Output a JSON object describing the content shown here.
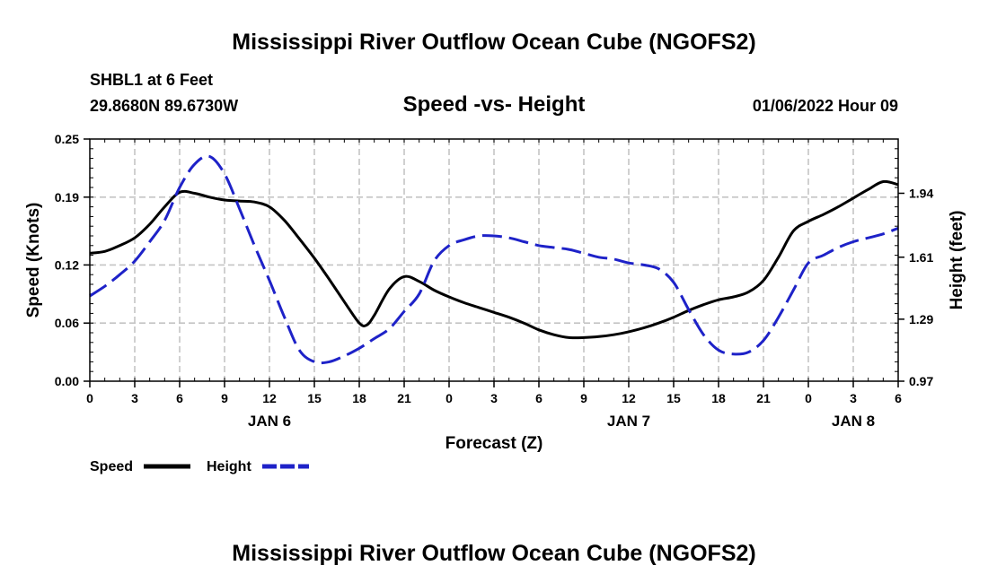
{
  "chart_data": {
    "type": "line",
    "title": "Mississippi River Outflow Ocean Cube (NGOFS2)",
    "footer_title": "Mississippi River Outflow Ocean Cube (NGOFS2)",
    "subtitle": "Speed -vs- Height",
    "station": "SHBL1 at 6 Feet",
    "location": "29.8680N  89.6730W",
    "timestamp": "01/06/2022 Hour 09",
    "xlabel": "Forecast (Z)",
    "ylabel_left": "Speed (Knots)",
    "ylabel_right": "Height (feet)",
    "x_range": [
      0,
      54
    ],
    "x_ticks": [
      0,
      3,
      6,
      9,
      12,
      15,
      18,
      21,
      24,
      27,
      30,
      33,
      36,
      39,
      42,
      45,
      48,
      51,
      54
    ],
    "x_tick_labels": [
      "0",
      "3",
      "6",
      "9",
      "12",
      "15",
      "18",
      "21",
      "0",
      "3",
      "6",
      "9",
      "12",
      "15",
      "18",
      "21",
      "0",
      "3",
      "6"
    ],
    "day_labels": [
      {
        "x": 12,
        "label": "JAN 6"
      },
      {
        "x": 36,
        "label": "JAN 7"
      },
      {
        "x": 51,
        "label": "JAN 8"
      }
    ],
    "ylim_left": [
      0,
      0.25
    ],
    "y_ticks_left": [
      0,
      0.06,
      0.12,
      0.19,
      0.25
    ],
    "y_tick_labels_left": [
      "0.00",
      "0.06",
      "0.12",
      "0.19",
      "0.25"
    ],
    "ylim_right": [
      0.97,
      2.22
    ],
    "y_ticks_right": [
      0.97,
      1.29,
      1.61,
      1.94
    ],
    "y_tick_labels_right": [
      "0.97",
      "1.29",
      "1.61",
      "1.94"
    ],
    "grid": true,
    "series": [
      {
        "name": "Speed",
        "axis": "left",
        "color": "#000000",
        "dash": "solid",
        "x": [
          0,
          1,
          2,
          3,
          4,
          5,
          6,
          7,
          8,
          9,
          10,
          11,
          12,
          13,
          14,
          15,
          16,
          17,
          18,
          18.5,
          19,
          20,
          21,
          22,
          23,
          24,
          25,
          26,
          27,
          28,
          29,
          30,
          31,
          32,
          33,
          34,
          35,
          36,
          37,
          38,
          39,
          40,
          41,
          42,
          43,
          44,
          45,
          46,
          47,
          48,
          49,
          50,
          51,
          52,
          53,
          54
        ],
        "values": [
          0.132,
          0.134,
          0.14,
          0.148,
          0.162,
          0.18,
          0.195,
          0.194,
          0.19,
          0.187,
          0.186,
          0.185,
          0.18,
          0.166,
          0.147,
          0.127,
          0.105,
          0.082,
          0.06,
          0.058,
          0.068,
          0.095,
          0.108,
          0.103,
          0.094,
          0.087,
          0.081,
          0.076,
          0.071,
          0.066,
          0.06,
          0.053,
          0.048,
          0.045,
          0.045,
          0.046,
          0.048,
          0.051,
          0.055,
          0.06,
          0.066,
          0.073,
          0.079,
          0.084,
          0.087,
          0.092,
          0.104,
          0.128,
          0.155,
          0.165,
          0.172,
          0.18,
          0.189,
          0.198,
          0.206,
          0.203
        ]
      },
      {
        "name": "Height",
        "axis": "right",
        "color": "#1e22c8",
        "dash": "dashed",
        "x": [
          0,
          1,
          2,
          3,
          4,
          5,
          6,
          7,
          8,
          9,
          10,
          11,
          12,
          13,
          14,
          15,
          16,
          17,
          18,
          19,
          20,
          21,
          22,
          23,
          24,
          25,
          26,
          27,
          28,
          29,
          30,
          31,
          32,
          33,
          34,
          35,
          36,
          37,
          38,
          39,
          40,
          41,
          42,
          43,
          44,
          45,
          46,
          47,
          48,
          49,
          50,
          51,
          52,
          53,
          54
        ],
        "values": [
          1.41,
          1.46,
          1.52,
          1.59,
          1.69,
          1.8,
          1.97,
          2.09,
          2.13,
          2.04,
          1.86,
          1.67,
          1.49,
          1.3,
          1.13,
          1.07,
          1.07,
          1.1,
          1.14,
          1.19,
          1.24,
          1.33,
          1.42,
          1.59,
          1.67,
          1.7,
          1.72,
          1.72,
          1.71,
          1.69,
          1.67,
          1.66,
          1.65,
          1.63,
          1.61,
          1.6,
          1.58,
          1.57,
          1.55,
          1.48,
          1.34,
          1.21,
          1.13,
          1.11,
          1.12,
          1.18,
          1.3,
          1.44,
          1.58,
          1.62,
          1.66,
          1.69,
          1.71,
          1.73,
          1.76
        ]
      }
    ],
    "legend": [
      {
        "label": "Speed",
        "color": "#000000",
        "dash": "solid"
      },
      {
        "label": "Height",
        "color": "#1e22c8",
        "dash": "dashed"
      }
    ],
    "legend_position": "bottom-left"
  }
}
